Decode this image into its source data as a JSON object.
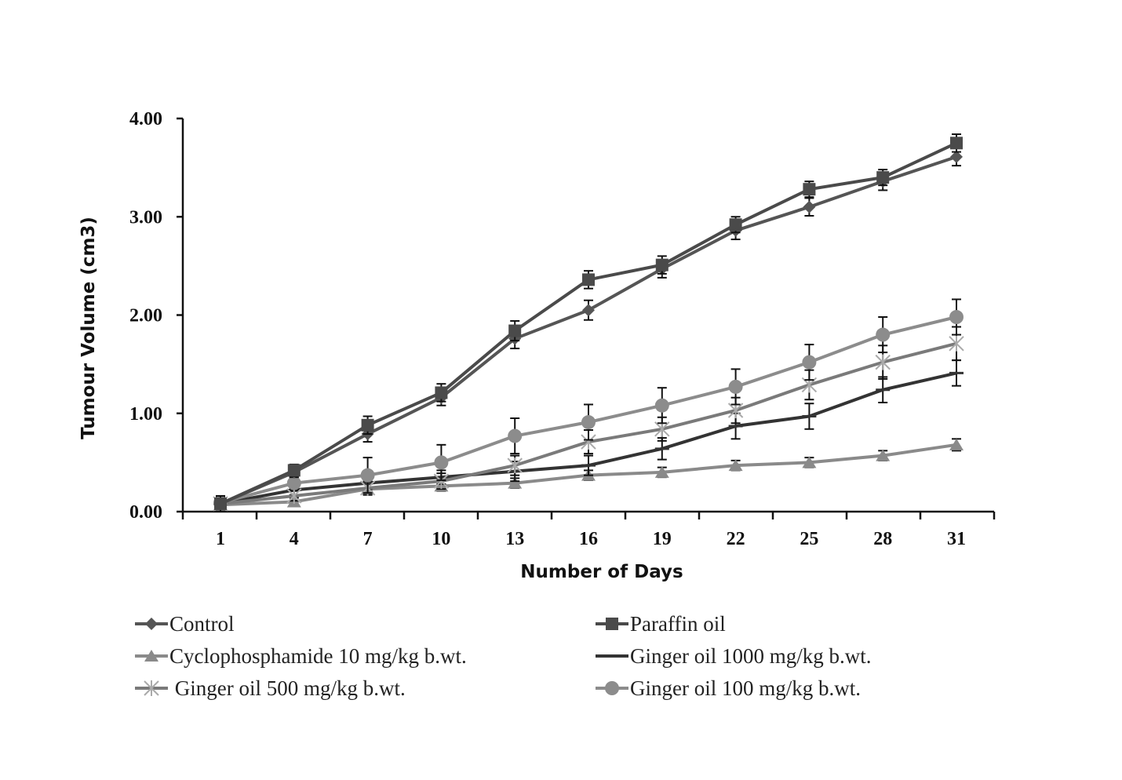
{
  "chart_data": {
    "type": "line",
    "title": "",
    "xlabel": "Number of Days",
    "ylabel": "Tumour Volume (cm3)",
    "x": [
      1,
      4,
      7,
      10,
      13,
      16,
      19,
      22,
      25,
      28,
      31
    ],
    "x_tick_labels": [
      "1",
      "4",
      "7",
      "10",
      "13",
      "16",
      "19",
      "22",
      "25",
      "28",
      "31"
    ],
    "y_tick_labels": [
      "0.00",
      "1.00",
      "2.00",
      "3.00",
      "4.00"
    ],
    "y_ticks": [
      0,
      1,
      2,
      3,
      4
    ],
    "ylim": [
      0,
      4
    ],
    "grid": false,
    "legend_position": "bottom",
    "series": [
      {
        "name": "Control",
        "marker": "diamond",
        "color": "#555555",
        "values": [
          0.08,
          0.4,
          0.79,
          1.16,
          1.76,
          2.05,
          2.47,
          2.86,
          3.1,
          3.36,
          3.61
        ],
        "errors": [
          0.08,
          0.05,
          0.08,
          0.08,
          0.1,
          0.1,
          0.09,
          0.09,
          0.09,
          0.09,
          0.09
        ]
      },
      {
        "name": "Paraffin oil",
        "marker": "square",
        "color": "#4a4a4a",
        "values": [
          0.08,
          0.42,
          0.88,
          1.21,
          1.84,
          2.36,
          2.51,
          2.92,
          3.28,
          3.4,
          3.75
        ],
        "errors": [
          0.08,
          0.06,
          0.09,
          0.09,
          0.1,
          0.09,
          0.09,
          0.08,
          0.08,
          0.08,
          0.09
        ]
      },
      {
        "name": "Cyclophosphamide 10 mg/kg b.wt.",
        "marker": "triangle",
        "color": "#8a8a8a",
        "values": [
          0.07,
          0.1,
          0.23,
          0.26,
          0.29,
          0.37,
          0.4,
          0.47,
          0.5,
          0.57,
          0.68
        ],
        "errors": [
          0.05,
          0.04,
          0.05,
          0.05,
          0.05,
          0.05,
          0.05,
          0.05,
          0.05,
          0.05,
          0.06
        ]
      },
      {
        "name": "Ginger oil 1000 mg/kg b.wt.",
        "marker": "dash",
        "color": "#333333",
        "values": [
          0.08,
          0.22,
          0.29,
          0.35,
          0.41,
          0.47,
          0.64,
          0.87,
          0.97,
          1.24,
          1.41
        ],
        "errors": [
          0.05,
          0.05,
          0.06,
          0.07,
          0.1,
          0.1,
          0.11,
          0.13,
          0.13,
          0.13,
          0.13
        ]
      },
      {
        "name": "Ginger oil 500 mg/kg b.wt.",
        "marker": "star",
        "color": "#7a7a7a",
        "values": [
          0.08,
          0.16,
          0.24,
          0.31,
          0.47,
          0.71,
          0.84,
          1.03,
          1.29,
          1.52,
          1.71
        ],
        "errors": [
          0.05,
          0.05,
          0.07,
          0.08,
          0.1,
          0.12,
          0.12,
          0.13,
          0.15,
          0.17,
          0.17
        ]
      },
      {
        "name": "Ginger oil 100 mg/kg b.wt.",
        "marker": "circle",
        "color": "#8c8c8c",
        "values": [
          0.09,
          0.29,
          0.37,
          0.5,
          0.77,
          0.91,
          1.08,
          1.27,
          1.52,
          1.8,
          1.98
        ],
        "errors": [
          0.06,
          0.06,
          0.18,
          0.18,
          0.18,
          0.18,
          0.18,
          0.18,
          0.18,
          0.18,
          0.18
        ]
      }
    ]
  }
}
